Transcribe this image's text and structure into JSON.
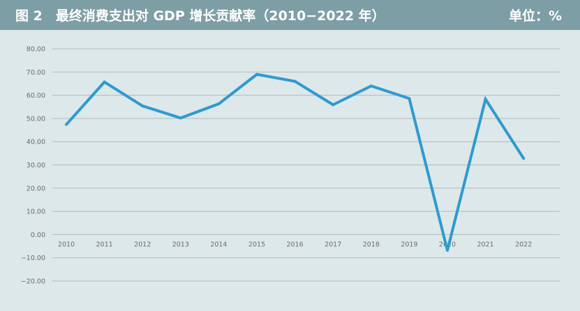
{
  "header": {
    "title": "图 2　最终消费支出对 GDP 增长贡献率（2010−2022 年）",
    "unit": "单位：%"
  },
  "colors": {
    "header_bg": "#7d9ea4",
    "plot_bg": "#dde8ea",
    "line": "#2e9ad0",
    "grid": "#b3b8ba",
    "tick_text": "#6b6b6b"
  },
  "chart_data": {
    "type": "line",
    "title": "图 2　最终消费支出对 GDP 增长贡献率（2010−2022 年）",
    "unit": "单位：%",
    "x": [
      "2010",
      "2011",
      "2012",
      "2013",
      "2014",
      "2015",
      "2016",
      "2017",
      "2018",
      "2019",
      "2020",
      "2021",
      "2022"
    ],
    "series": [
      {
        "values": [
          47.4,
          65.7,
          55.4,
          50.2,
          56.3,
          69.0,
          66.0,
          55.9,
          64.0,
          58.6,
          -6.8,
          58.3,
          32.8
        ]
      }
    ],
    "y_ticks": [
      "80.00",
      "70.00",
      "60.00",
      "50.00",
      "40.00",
      "30.00",
      "20.00",
      "10.00",
      "0.00",
      "−10.00",
      "−20.00"
    ],
    "ylim": [
      -20,
      80
    ],
    "grid": true,
    "legend": "none"
  }
}
